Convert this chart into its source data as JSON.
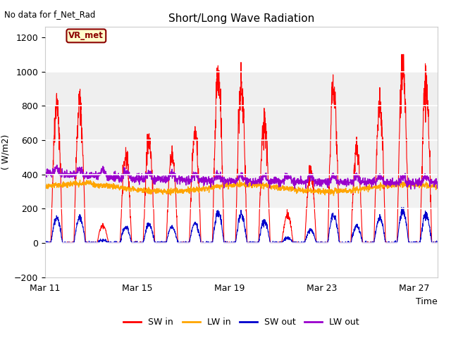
{
  "title": "Short/Long Wave Radiation",
  "xlabel": "Time",
  "ylabel": "( W/m2)",
  "top_label": "No data for f_Net_Rad",
  "annotation_label": "VR_met",
  "ylim": [
    -200,
    1260
  ],
  "yticks": [
    -200,
    0,
    200,
    400,
    600,
    800,
    1000,
    1200
  ],
  "xtick_labels": [
    "Mar 11",
    "Mar 15",
    "Mar 19",
    "Mar 23",
    "Mar 27"
  ],
  "xtick_positions": [
    0,
    4,
    8,
    12,
    16
  ],
  "colors": {
    "SW_in": "#ff0000",
    "LW_in": "#ffa500",
    "SW_out": "#0000cc",
    "LW_out": "#9900cc"
  },
  "plot_bg": "#ffffff",
  "band1_color": "#e8e8e8",
  "band2_color": "#e0e0e0",
  "annotation_box_bg": "#ffffcc",
  "annotation_box_edge": "#8b0000",
  "annotation_text_color": "#8b0000",
  "n_points": 2000,
  "days": 17
}
